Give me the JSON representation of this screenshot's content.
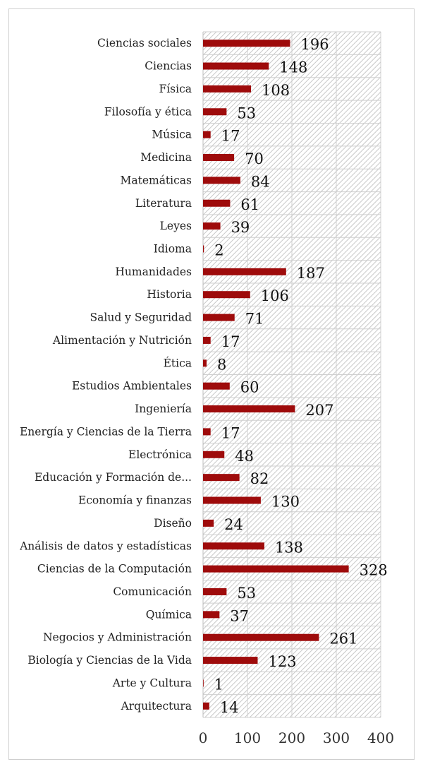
{
  "chart_data": {
    "type": "bar",
    "orientation": "horizontal",
    "categories": [
      "Ciencias sociales",
      "Ciencias",
      "Física",
      "Filosofía y ética",
      "Música",
      "Medicina",
      "Matemáticas",
      "Literatura",
      "Leyes",
      "Idioma",
      "Humanidades",
      "Historia",
      "Salud y Seguridad",
      "Alimentación y Nutrición",
      "Ética",
      "Estudios Ambientales",
      "Ingeniería",
      "Energía y Ciencias de la Tierra",
      "Electrónica",
      "Educación y Formación de...",
      "Economía y finanzas",
      "Diseño",
      "Análisis de datos y estadísticas",
      "Ciencias de la Computación",
      "Comunicación",
      "Química",
      "Negocios y Administración",
      "Biología y Ciencias de la Vida",
      "Arte y Cultura",
      "Arquitectura"
    ],
    "values": [
      196,
      148,
      108,
      53,
      17,
      70,
      84,
      61,
      39,
      2,
      187,
      106,
      71,
      17,
      8,
      60,
      207,
      17,
      48,
      82,
      130,
      24,
      138,
      328,
      53,
      37,
      261,
      123,
      1,
      14
    ],
    "xlim": [
      0,
      400
    ],
    "xticks": [
      "0",
      "100",
      "200",
      "300",
      "400"
    ],
    "grid": true,
    "bar_color": "#9e0b0b",
    "background": "hatched"
  }
}
